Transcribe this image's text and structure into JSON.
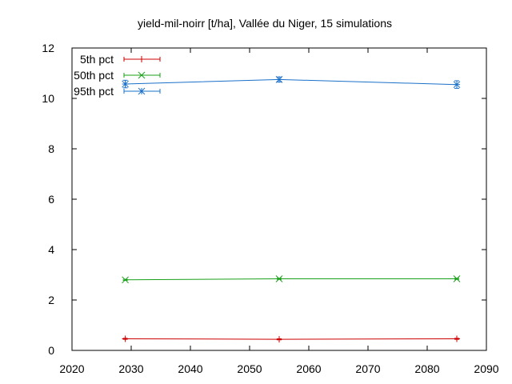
{
  "chart_data": {
    "type": "line",
    "title": "yield-mil-noirr [t/ha], Vallée du Niger, 15 simulations",
    "xlabel": "",
    "ylabel": "",
    "xlim": [
      2020,
      2090
    ],
    "ylim": [
      0,
      12
    ],
    "xticks": [
      2020,
      2030,
      2040,
      2050,
      2060,
      2070,
      2080,
      2090
    ],
    "yticks": [
      0,
      2,
      4,
      6,
      8,
      10,
      12
    ],
    "grid": false,
    "legend_position": "top-left",
    "x": [
      2029,
      2055,
      2085
    ],
    "series": [
      {
        "name": "5th pct",
        "color": "#cc0000",
        "marker": "plus",
        "values": [
          0.46,
          0.44,
          0.46
        ],
        "errors": [
          0.02,
          0.02,
          0.02
        ]
      },
      {
        "name": "50th pct",
        "color": "#1aa01a",
        "marker": "cross",
        "values": [
          2.8,
          2.84,
          2.84
        ],
        "errors": [
          0.02,
          0.02,
          0.02
        ]
      },
      {
        "name": "95th pct",
        "color": "#1a70c8",
        "marker": "star",
        "values": [
          10.57,
          10.75,
          10.55
        ],
        "errors": [
          0.15,
          0.1,
          0.15
        ]
      }
    ]
  }
}
